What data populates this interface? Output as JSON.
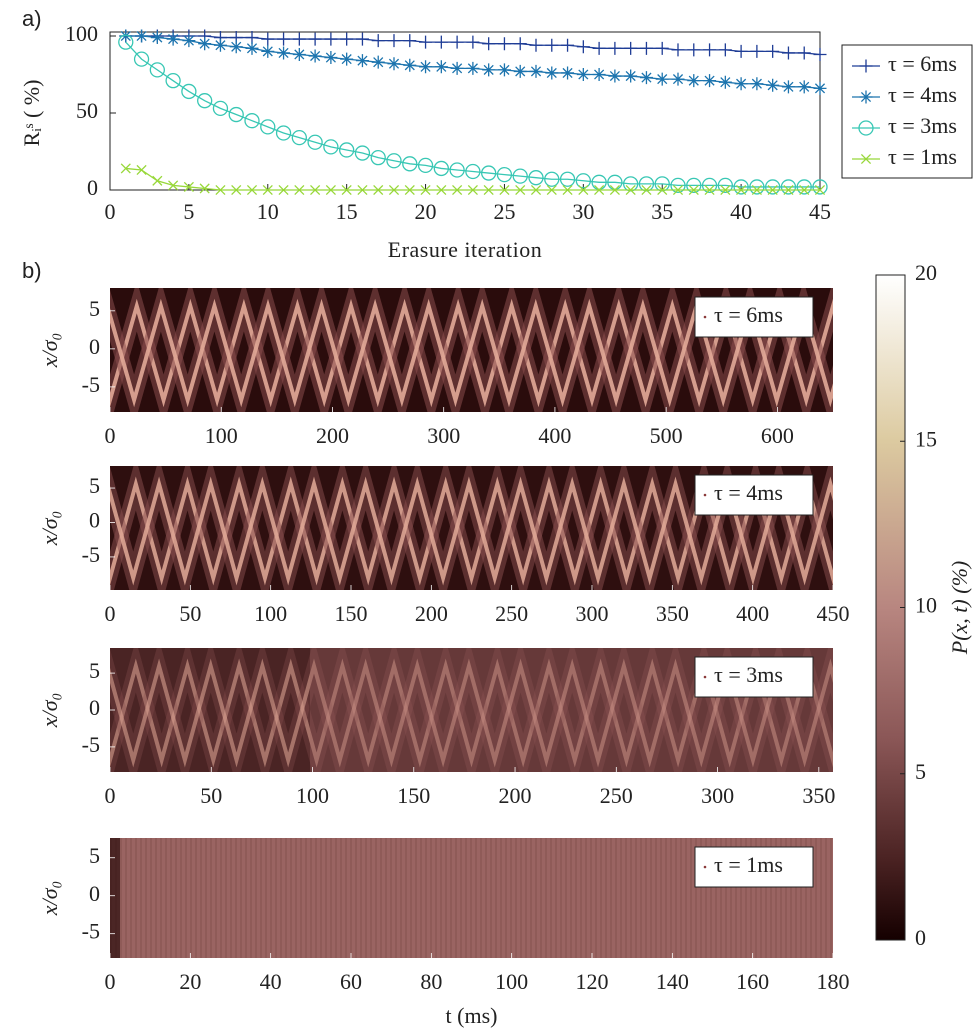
{
  "chart_data": [
    {
      "type": "line",
      "panel_label": "a)",
      "ylabel": "Rᵢˢ ( %)",
      "xlabel": "Erasure iteration",
      "x": [
        1,
        2,
        3,
        4,
        5,
        6,
        7,
        8,
        9,
        10,
        11,
        12,
        13,
        14,
        15,
        16,
        17,
        18,
        19,
        20,
        21,
        22,
        23,
        24,
        25,
        26,
        27,
        28,
        29,
        30,
        31,
        32,
        33,
        34,
        35,
        36,
        37,
        38,
        39,
        40,
        41,
        42,
        43,
        44,
        45
      ],
      "xlim": [
        0,
        45
      ],
      "xticks": [
        0,
        5,
        10,
        15,
        20,
        25,
        30,
        35,
        40,
        45
      ],
      "ylim": [
        0,
        100
      ],
      "yticks": [
        0,
        50,
        100
      ],
      "legend": "outside right",
      "series": [
        {
          "name": "τ = 6ms",
          "color": "#1f3d96",
          "marker": "+",
          "values": [
            100,
            100,
            100,
            100,
            100,
            100,
            99,
            99,
            99,
            98,
            98,
            98,
            98,
            98,
            98,
            98,
            97,
            97,
            97,
            96,
            96,
            96,
            96,
            95,
            95,
            95,
            94,
            94,
            94,
            93,
            92,
            92,
            92,
            92,
            92,
            91,
            91,
            91,
            91,
            90,
            90,
            90,
            89,
            89,
            88
          ]
        },
        {
          "name": "τ = 4ms",
          "color": "#1c74ae",
          "marker": "*",
          "values": [
            100,
            100,
            99,
            98,
            97,
            95,
            94,
            93,
            92,
            90,
            89,
            88,
            87,
            86,
            85,
            84,
            83,
            82,
            81,
            80,
            80,
            79,
            79,
            78,
            78,
            77,
            77,
            76,
            76,
            75,
            75,
            74,
            74,
            73,
            72,
            72,
            71,
            71,
            70,
            69,
            69,
            68,
            67,
            67,
            66
          ]
        },
        {
          "name": "τ = 3ms",
          "color": "#38c7b4",
          "marker": "o",
          "values": [
            96,
            85,
            78,
            71,
            64,
            58,
            53,
            49,
            45,
            41,
            37,
            34,
            31,
            28,
            26,
            24,
            21,
            19,
            17,
            16,
            14,
            13,
            12,
            11,
            10,
            9,
            8,
            7,
            7,
            6,
            5,
            5,
            4,
            4,
            4,
            3,
            3,
            3,
            3,
            2,
            2,
            2,
            2,
            2,
            2
          ]
        },
        {
          "name": "τ = 1ms",
          "color": "#98d83a",
          "marker": "x",
          "values": [
            14,
            13,
            6,
            3,
            2,
            1,
            0,
            0,
            0,
            0,
            0,
            0,
            0,
            0,
            0,
            0,
            0,
            0,
            0,
            0,
            0,
            0,
            0,
            0,
            0,
            0,
            0,
            0,
            0,
            0,
            0,
            0,
            0,
            0,
            0,
            0,
            0,
            0,
            0,
            0,
            0,
            0,
            0,
            0,
            0
          ]
        }
      ]
    },
    {
      "type": "heatmap",
      "panel_label": "b)",
      "ylabel": "x/σ₀",
      "legend_label": "τ = 6ms",
      "xlim": [
        0,
        650
      ],
      "xticks": [
        0,
        100,
        200,
        300,
        400,
        500,
        600
      ],
      "ylim": [
        -8.3,
        8
      ],
      "yticks": [
        -5,
        0,
        5
      ]
    },
    {
      "type": "heatmap",
      "ylabel": "x/σ₀",
      "legend_label": "τ = 4ms",
      "xlim": [
        0,
        450
      ],
      "xticks": [
        0,
        50,
        100,
        150,
        200,
        250,
        300,
        350,
        400,
        450
      ],
      "ylim": [
        -9.8,
        8.2
      ],
      "yticks": [
        -5,
        0,
        5
      ]
    },
    {
      "type": "heatmap",
      "ylabel": "x/σ₀",
      "legend_label": "τ = 3ms",
      "xlim": [
        0,
        357
      ],
      "xticks": [
        0,
        50,
        100,
        150,
        200,
        250,
        300,
        350
      ],
      "ylim": [
        -8.4,
        8.4
      ],
      "yticks": [
        -5,
        0,
        5
      ]
    },
    {
      "type": "heatmap",
      "ylabel": "x/σ₀",
      "legend_label": "τ = 1ms",
      "xlabel": "t (ms)",
      "xlim": [
        0,
        180
      ],
      "xticks": [
        0,
        20,
        40,
        60,
        80,
        100,
        120,
        140,
        160,
        180
      ],
      "ylim": [
        -8.2,
        7.6
      ],
      "yticks": [
        -5,
        0,
        5
      ]
    },
    {
      "type": "colorbar",
      "ylabel": "P(x, t) (%)",
      "ylim": [
        0,
        20
      ],
      "yticks": [
        0,
        5,
        10,
        15,
        20
      ]
    }
  ]
}
